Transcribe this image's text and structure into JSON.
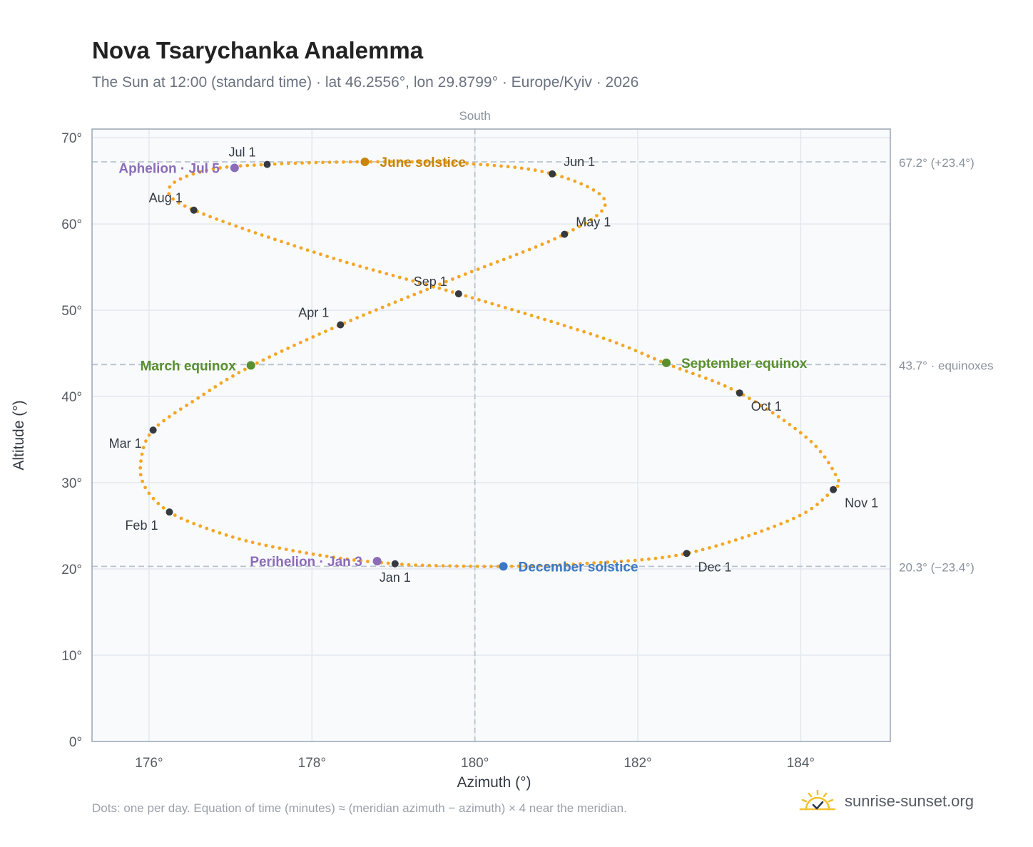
{
  "title": "Nova Tsarychanka Analemma",
  "subtitle": "The Sun at 12:00 (standard time) · lat 46.2556°, lon 29.8799° · Europe/Kyiv · 2026",
  "footnote": "Dots: one per day. Equation of time (minutes) ≈ (meridian azimuth − azimuth) × 4 near the meridian.",
  "brand": {
    "name": "sunrise-sunset.org",
    "icon": "sun-logo-icon"
  },
  "colors": {
    "curve": "#f5a623",
    "month_marker": "#343a40",
    "june_solstice": "#c8850a",
    "december_solstice": "#3b78c4",
    "equinox": "#5a8f2e",
    "apsis": "#8c6bb8",
    "reference_line": "#b9c3ce",
    "grid": "#e3e8ee",
    "plot_bg": "#f8fafc",
    "frame": "#9aa5b4"
  },
  "chart_data": {
    "type": "scatter",
    "xlabel": "Azimuth (°)",
    "ylabel": "Altitude (°)",
    "xlim": [
      175.3,
      185.1
    ],
    "ylim": [
      0,
      71
    ],
    "xticks": [
      176,
      178,
      180,
      182,
      184
    ],
    "xtick_labels": [
      "176°",
      "178°",
      "180°",
      "182°",
      "184°"
    ],
    "yticks": [
      0,
      10,
      20,
      30,
      40,
      50,
      60,
      70
    ],
    "ytick_labels": [
      "0°",
      "10°",
      "20°",
      "30°",
      "40°",
      "50°",
      "60°",
      "70°"
    ],
    "grid": true,
    "meridian": {
      "azimuth": 180,
      "label": "South"
    },
    "reference_lines": [
      {
        "altitude": 67.2,
        "label": "67.2° (+23.4°)"
      },
      {
        "altitude": 43.7,
        "label": "43.7° · equinoxes"
      },
      {
        "altitude": 20.3,
        "label": "20.3° (−23.4°)"
      }
    ],
    "curve_anchors": [
      {
        "az": 179.02,
        "alt": 20.6
      },
      {
        "az": 178.3,
        "alt": 21.3
      },
      {
        "az": 177.4,
        "alt": 22.8
      },
      {
        "az": 176.8,
        "alt": 24.4
      },
      {
        "az": 176.25,
        "alt": 26.6
      },
      {
        "az": 175.95,
        "alt": 29.5
      },
      {
        "az": 175.9,
        "alt": 32.5
      },
      {
        "az": 176.05,
        "alt": 36.1
      },
      {
        "az": 176.6,
        "alt": 39.8
      },
      {
        "az": 177.25,
        "alt": 43.5
      },
      {
        "az": 178.35,
        "alt": 48.3
      },
      {
        "az": 179.7,
        "alt": 53.5
      },
      {
        "az": 181.1,
        "alt": 58.8
      },
      {
        "az": 181.6,
        "alt": 62.6
      },
      {
        "az": 180.95,
        "alt": 65.8
      },
      {
        "az": 179.9,
        "alt": 67.0
      },
      {
        "az": 178.65,
        "alt": 67.2
      },
      {
        "az": 177.45,
        "alt": 66.9
      },
      {
        "az": 176.7,
        "alt": 66.2
      },
      {
        "az": 176.25,
        "alt": 64.2
      },
      {
        "az": 176.55,
        "alt": 61.6
      },
      {
        "az": 178.2,
        "alt": 56.2
      },
      {
        "az": 179.8,
        "alt": 51.9
      },
      {
        "az": 181.5,
        "alt": 47.0
      },
      {
        "az": 182.35,
        "alt": 43.8
      },
      {
        "az": 183.25,
        "alt": 40.4
      },
      {
        "az": 184.1,
        "alt": 35.0
      },
      {
        "az": 184.45,
        "alt": 30.5
      },
      {
        "az": 184.4,
        "alt": 29.2
      },
      {
        "az": 183.9,
        "alt": 25.8
      },
      {
        "az": 182.6,
        "alt": 21.8
      },
      {
        "az": 181.3,
        "alt": 20.6
      },
      {
        "az": 180.35,
        "alt": 20.3
      },
      {
        "az": 179.45,
        "alt": 20.4
      },
      {
        "az": 179.02,
        "alt": 20.6
      }
    ],
    "month_markers": [
      {
        "label": "Jan 1",
        "az": 179.02,
        "alt": 20.6,
        "label_pos": "below"
      },
      {
        "label": "Feb 1",
        "az": 176.25,
        "alt": 26.6,
        "label_pos": "below-left"
      },
      {
        "label": "Mar 1",
        "az": 176.05,
        "alt": 36.1,
        "label_pos": "below-left"
      },
      {
        "label": "Apr 1",
        "az": 178.35,
        "alt": 48.3,
        "label_pos": "above-left"
      },
      {
        "label": "May 1",
        "az": 181.1,
        "alt": 58.8,
        "label_pos": "above-right"
      },
      {
        "label": "Jun 1",
        "az": 180.95,
        "alt": 65.8,
        "label_pos": "above-right"
      },
      {
        "label": "Jul 1",
        "az": 177.45,
        "alt": 66.9,
        "label_pos": "above-left"
      },
      {
        "label": "Aug 1",
        "az": 176.55,
        "alt": 61.6,
        "label_pos": "above-left"
      },
      {
        "label": "Sep 1",
        "az": 179.8,
        "alt": 51.9,
        "label_pos": "above-left"
      },
      {
        "label": "Oct 1",
        "az": 183.25,
        "alt": 40.4,
        "label_pos": "below-right"
      },
      {
        "label": "Nov 1",
        "az": 184.4,
        "alt": 29.2,
        "label_pos": "below-right"
      },
      {
        "label": "Dec 1",
        "az": 182.6,
        "alt": 21.8,
        "label_pos": "below-right"
      }
    ],
    "events": [
      {
        "label": "June solstice",
        "az": 178.65,
        "alt": 67.2,
        "color_key": "june_solstice",
        "label_side": "right"
      },
      {
        "label": "December solstice",
        "az": 180.35,
        "alt": 20.3,
        "color_key": "december_solstice",
        "label_side": "right"
      },
      {
        "label": "March equinox",
        "az": 177.25,
        "alt": 43.6,
        "color_key": "equinox",
        "label_side": "left"
      },
      {
        "label": "September equinox",
        "az": 182.35,
        "alt": 43.9,
        "color_key": "equinox",
        "label_side": "right"
      },
      {
        "label": "Aphelion · Jul 5",
        "az": 177.05,
        "alt": 66.5,
        "color_key": "apsis",
        "label_side": "left"
      },
      {
        "label": "Perihelion · Jan 3",
        "az": 178.8,
        "alt": 20.9,
        "color_key": "apsis",
        "label_side": "left"
      }
    ]
  }
}
